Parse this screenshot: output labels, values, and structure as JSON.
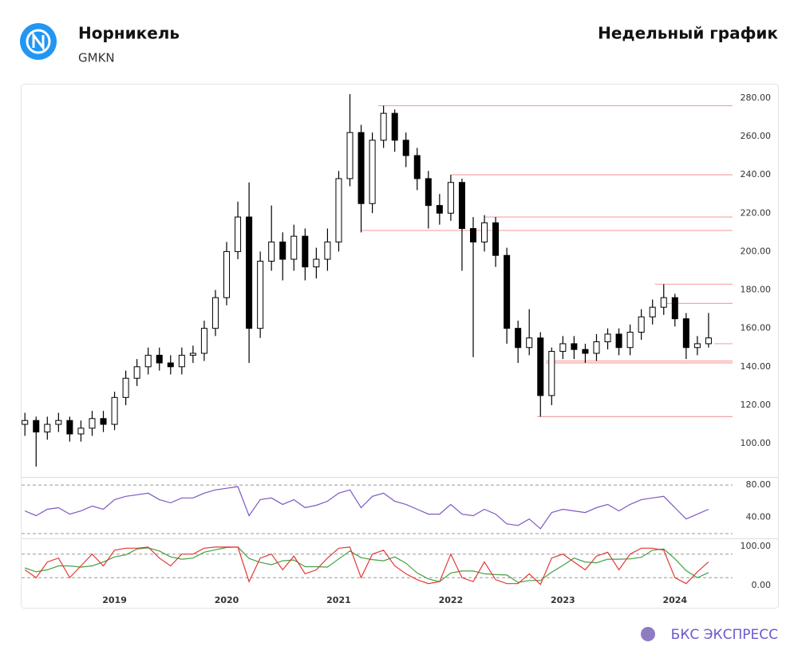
{
  "header": {
    "name": "Норникель",
    "ticker": "GMKN",
    "chart_label": "Недельный график"
  },
  "footer": {
    "brand": "БКС ЭКСПРЕСС"
  },
  "chart_data": [
    {
      "type": "candlestick",
      "up_color": "#ffffff",
      "down_color": "#000000",
      "level_color": "#f4a6a6",
      "xlim": [
        2018.17,
        2024.92
      ],
      "ylim": [
        83,
        287
      ],
      "yticks": [
        {
          "value": 100,
          "label": "100.00"
        },
        {
          "value": 120,
          "label": "120.00"
        },
        {
          "value": 140,
          "label": "140.00"
        },
        {
          "value": 160,
          "label": "160.00"
        },
        {
          "value": 180,
          "label": "180.00"
        },
        {
          "value": 200,
          "label": "200.00"
        },
        {
          "value": 220,
          "label": "220.00"
        },
        {
          "value": 240,
          "label": "240.00"
        },
        {
          "value": 260,
          "label": "260.00"
        },
        {
          "value": 280,
          "label": "280.00"
        }
      ],
      "x": [
        2018.2,
        2018.3,
        2018.4,
        2018.5,
        2018.6,
        2018.7,
        2018.8,
        2018.9,
        2019.0,
        2019.1,
        2019.2,
        2019.3,
        2019.4,
        2019.5,
        2019.6,
        2019.7,
        2019.8,
        2019.9,
        2020.0,
        2020.1,
        2020.2,
        2020.3,
        2020.4,
        2020.5,
        2020.6,
        2020.7,
        2020.8,
        2020.9,
        2021.0,
        2021.1,
        2021.2,
        2021.3,
        2021.4,
        2021.5,
        2021.6,
        2021.7,
        2021.8,
        2021.9,
        2022.0,
        2022.1,
        2022.2,
        2022.3,
        2022.4,
        2022.5,
        2022.6,
        2022.7,
        2022.8,
        2022.9,
        2023.0,
        2023.1,
        2023.2,
        2023.3,
        2023.4,
        2023.5,
        2023.6,
        2023.7,
        2023.8,
        2023.9,
        2024.0,
        2024.1,
        2024.2,
        2024.3
      ],
      "open": [
        110,
        112,
        106,
        110,
        112,
        105,
        108,
        113,
        110,
        124,
        134,
        140,
        146,
        142,
        140,
        146,
        147,
        160,
        176,
        200,
        218,
        160,
        195,
        205,
        196,
        208,
        192,
        196,
        205,
        238,
        262,
        225,
        258,
        272,
        258,
        250,
        238,
        224,
        220,
        236,
        212,
        205,
        215,
        198,
        160,
        150,
        155,
        125,
        148,
        152,
        149,
        147,
        153,
        157,
        150,
        158,
        166,
        171,
        176,
        165,
        150,
        152
      ],
      "high": [
        116,
        114,
        114,
        116,
        114,
        112,
        117,
        117,
        127,
        138,
        144,
        150,
        150,
        146,
        150,
        151,
        164,
        180,
        205,
        226,
        236,
        200,
        224,
        210,
        214,
        212,
        202,
        212,
        242,
        282,
        266,
        262,
        276,
        274,
        262,
        254,
        242,
        230,
        240,
        238,
        218,
        219,
        218,
        202,
        164,
        170,
        158,
        150,
        156,
        156,
        152,
        157,
        160,
        160,
        162,
        170,
        175,
        183,
        178,
        168,
        156,
        168
      ],
      "low": [
        104,
        88,
        102,
        106,
        101,
        101,
        104,
        106,
        107,
        120,
        130,
        136,
        138,
        136,
        136,
        142,
        143,
        156,
        172,
        196,
        142,
        155,
        190,
        185,
        190,
        185,
        186,
        190,
        200,
        234,
        210,
        220,
        254,
        252,
        244,
        232,
        212,
        214,
        216,
        190,
        145,
        200,
        192,
        152,
        142,
        146,
        114,
        120,
        144,
        144,
        142,
        143,
        149,
        146,
        146,
        154,
        162,
        167,
        161,
        144,
        146,
        150
      ],
      "close": [
        112,
        106,
        110,
        112,
        105,
        108,
        113,
        110,
        124,
        134,
        140,
        146,
        142,
        140,
        146,
        147,
        160,
        176,
        200,
        218,
        160,
        195,
        205,
        196,
        208,
        192,
        196,
        205,
        238,
        262,
        225,
        258,
        272,
        258,
        250,
        238,
        224,
        220,
        236,
        212,
        205,
        215,
        198,
        160,
        150,
        155,
        125,
        148,
        152,
        149,
        147,
        153,
        157,
        150,
        158,
        166,
        171,
        176,
        165,
        150,
        152,
        155
      ],
      "levels": [
        {
          "value": 276,
          "from": 2021.35
        },
        {
          "value": 240,
          "from": 2022.0
        },
        {
          "value": 218,
          "from": 2022.3
        },
        {
          "value": 211,
          "from": 2021.2
        },
        {
          "value": 183,
          "from": 2023.82
        },
        {
          "value": 173,
          "from": 2023.9
        },
        {
          "value": 152,
          "from": 2024.35
        },
        {
          "value": 143,
          "from": 2022.85
        },
        {
          "value": 142,
          "from": 2022.85
        },
        {
          "value": 114,
          "from": 2022.77
        }
      ]
    },
    {
      "type": "line",
      "xlim": [
        2018.17,
        2024.92
      ],
      "ylim": [
        16,
        88
      ],
      "hlines": [
        20,
        80
      ],
      "yticks": [
        {
          "value": 40,
          "label": "40.00"
        },
        {
          "value": 80,
          "label": "80.00"
        }
      ],
      "x": [
        2018.2,
        2018.3,
        2018.4,
        2018.5,
        2018.6,
        2018.7,
        2018.8,
        2018.9,
        2019.0,
        2019.1,
        2019.2,
        2019.3,
        2019.4,
        2019.5,
        2019.6,
        2019.7,
        2019.8,
        2019.9,
        2020.0,
        2020.1,
        2020.2,
        2020.3,
        2020.4,
        2020.5,
        2020.6,
        2020.7,
        2020.8,
        2020.9,
        2021.0,
        2021.1,
        2021.2,
        2021.3,
        2021.4,
        2021.5,
        2021.6,
        2021.7,
        2021.8,
        2021.9,
        2022.0,
        2022.1,
        2022.2,
        2022.3,
        2022.4,
        2022.5,
        2022.6,
        2022.7,
        2022.8,
        2022.9,
        2023.0,
        2023.1,
        2023.2,
        2023.3,
        2023.4,
        2023.5,
        2023.6,
        2023.7,
        2023.8,
        2023.9,
        2024.0,
        2024.1,
        2024.2,
        2024.3
      ],
      "series": [
        {
          "color": "#7e57c2",
          "values": [
            48,
            42,
            50,
            52,
            44,
            48,
            54,
            50,
            62,
            66,
            68,
            70,
            62,
            58,
            64,
            64,
            70,
            74,
            76,
            78,
            42,
            62,
            64,
            56,
            62,
            52,
            55,
            60,
            70,
            74,
            52,
            66,
            70,
            60,
            56,
            50,
            44,
            44,
            56,
            44,
            42,
            50,
            44,
            32,
            30,
            38,
            26,
            46,
            50,
            48,
            46,
            52,
            56,
            48,
            56,
            62,
            64,
            66,
            52,
            38,
            44,
            50
          ]
        }
      ]
    },
    {
      "type": "line",
      "xlim": [
        2018.17,
        2024.92
      ],
      "ylim": [
        -22,
        116
      ],
      "hlines": [
        20,
        80
      ],
      "yticks": [
        {
          "value": 0,
          "label": "0.00"
        },
        {
          "value": 100,
          "label": "100.00"
        }
      ],
      "xticks": [
        2019,
        2020,
        2021,
        2022,
        2023,
        2024
      ],
      "x": [
        2018.2,
        2018.3,
        2018.4,
        2018.5,
        2018.6,
        2018.7,
        2018.8,
        2018.9,
        2019.0,
        2019.1,
        2019.2,
        2019.3,
        2019.4,
        2019.5,
        2019.6,
        2019.7,
        2019.8,
        2019.9,
        2020.0,
        2020.1,
        2020.2,
        2020.3,
        2020.4,
        2020.5,
        2020.6,
        2020.7,
        2020.8,
        2020.9,
        2021.0,
        2021.1,
        2021.2,
        2021.3,
        2021.4,
        2021.5,
        2021.6,
        2021.7,
        2021.8,
        2021.9,
        2022.0,
        2022.1,
        2022.2,
        2022.3,
        2022.4,
        2022.5,
        2022.6,
        2022.7,
        2022.8,
        2022.9,
        2023.0,
        2023.1,
        2023.2,
        2023.3,
        2023.4,
        2023.5,
        2023.6,
        2023.7,
        2023.8,
        2023.9,
        2024.0,
        2024.1,
        2024.2,
        2024.3
      ],
      "series": [
        {
          "color": "#43a047",
          "values": [
            45,
            35,
            40,
            50,
            50,
            47,
            50,
            60,
            73,
            78,
            93,
            96,
            88,
            73,
            67,
            70,
            85,
            91,
            97,
            98,
            69,
            59,
            53,
            63,
            65,
            48,
            48,
            47,
            68,
            88,
            71,
            66,
            63,
            73,
            57,
            32,
            17,
            10,
            32,
            37,
            37,
            30,
            28,
            27,
            8,
            13,
            13,
            34,
            51,
            70,
            60,
            58,
            67,
            67,
            68,
            72,
            90,
            93,
            68,
            38,
            20,
            33
          ]
        },
        {
          "color": "#e53935",
          "values": [
            40,
            20,
            60,
            70,
            20,
            50,
            80,
            50,
            90,
            95,
            95,
            98,
            70,
            50,
            80,
            80,
            95,
            98,
            98,
            98,
            10,
            70,
            80,
            40,
            75,
            30,
            40,
            70,
            95,
            98,
            20,
            80,
            90,
            50,
            30,
            15,
            5,
            10,
            80,
            20,
            10,
            60,
            15,
            5,
            5,
            30,
            3,
            70,
            80,
            60,
            40,
            75,
            85,
            40,
            80,
            95,
            95,
            90,
            20,
            5,
            35,
            60
          ]
        }
      ]
    }
  ]
}
